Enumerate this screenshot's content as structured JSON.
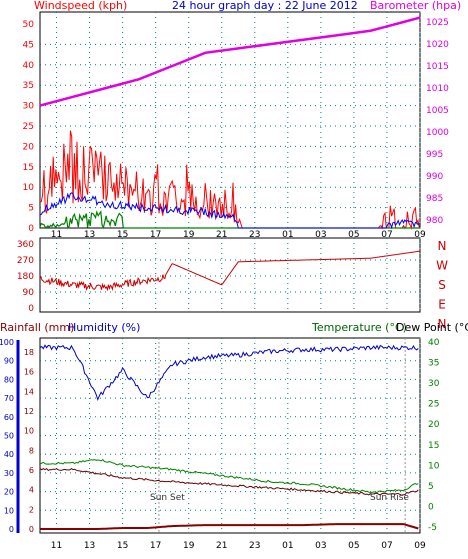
{
  "colors": {
    "windspeed": "#ff0000",
    "gust_avg": "#0000ff",
    "wind_green": "#008000",
    "barometer": "#e000e0",
    "direction": "#cc0000",
    "humidity": "#0000cc",
    "temperature": "#008000",
    "dewpoint": "#660000",
    "rainfall": "#880000",
    "title": "#0000cc",
    "grid": "#008080"
  },
  "top_panel": {
    "left_label": "Windspeed (kph)",
    "title": "24 hour graph day : 22 June 2012",
    "right_label": "Barometer (hpa)",
    "left_ticks": [
      "50",
      "45",
      "40",
      "35",
      "30",
      "25",
      "20",
      "15",
      "10",
      "5",
      "0"
    ],
    "right_ticks": [
      "1025",
      "1020",
      "1015",
      "1010",
      "1005",
      "1000",
      "995",
      "990",
      "985",
      "980"
    ]
  },
  "dir_panel": {
    "left_ticks": [
      "360",
      "270",
      "180",
      "90",
      "0"
    ],
    "compass": [
      "N",
      "W",
      "S",
      "E",
      "N"
    ]
  },
  "bottom_panel": {
    "left_label_1": "Rainfall (mm)",
    "left_label_2": "Humidity (%)",
    "right_label_1": "Temperature (°C)",
    "right_label_2": "Dew Point (°C)",
    "humidity_ticks": [
      "100",
      "90",
      "80",
      "70",
      "60",
      "50",
      "40",
      "30",
      "20",
      "10",
      "0"
    ],
    "rain_ticks": [
      "18",
      "16",
      "14",
      "12",
      "10",
      "8",
      "6",
      "4",
      "2",
      "0"
    ],
    "temp_ticks": [
      "40",
      "35",
      "30",
      "25",
      "20",
      "15",
      "10",
      "5",
      "0",
      "-5"
    ],
    "sunset": "Sun Set",
    "sunrise": "Sun Rise"
  },
  "x_ticks": [
    "11",
    "13",
    "15",
    "17",
    "19",
    "21",
    "23",
    "01",
    "03",
    "05",
    "07",
    "09"
  ],
  "chart_data": [
    {
      "type": "line",
      "title": "24 hour graph day : 22 June 2012",
      "xlabel": "",
      "ylabel": "Windspeed (kph)",
      "y2label": "Barometer (hpa)",
      "ylim": [
        0,
        50
      ],
      "y2lim": [
        980,
        1028
      ],
      "x": [
        "10:00",
        "12:00",
        "14:00",
        "16:00",
        "18:00",
        "20:00",
        "22:00",
        "00:00",
        "02:00",
        "04:00",
        "06:00",
        "08:00",
        "09:00"
      ],
      "series": [
        {
          "name": "Windspeed (kph)",
          "values": [
            6,
            14,
            10,
            8,
            7,
            6,
            2,
            0,
            0,
            0,
            0,
            1,
            4
          ]
        },
        {
          "name": "Barometer (hpa)",
          "values": [
            1006,
            1008,
            1010,
            1012,
            1015,
            1018,
            1019,
            1020,
            1021,
            1022,
            1023,
            1025,
            1026
          ]
        }
      ]
    },
    {
      "type": "line",
      "title": "",
      "ylabel": "",
      "ylim": [
        0,
        360
      ],
      "x": [
        "10:00",
        "12:00",
        "14:00",
        "16:00",
        "17:30",
        "18:00",
        "19:30",
        "21:00",
        "22:00",
        "06:00",
        "09:00"
      ],
      "series": [
        {
          "name": "",
          "values": [
            165,
            130,
            115,
            150,
            170,
            250,
            190,
            130,
            260,
            280,
            320
          ]
        }
      ]
    },
    {
      "type": "line",
      "title": "",
      "ylabel": "Humidity (%)",
      "y2label": "Temperature (°C)",
      "ylim": [
        0,
        100
      ],
      "y2lim": [
        -5,
        40
      ],
      "x": [
        "10:00",
        "12:00",
        "13:30",
        "15:00",
        "16:30",
        "18:00",
        "20:00",
        "22:00",
        "00:00",
        "02:00",
        "04:00",
        "06:00",
        "08:00",
        "09:00"
      ],
      "series": [
        {
          "name": "Humidity (%)",
          "values": [
            97,
            97,
            70,
            85,
            70,
            88,
            92,
            93,
            95,
            96,
            96,
            97,
            97,
            97
          ]
        },
        {
          "name": "Temperature (°C)",
          "values": [
            10.5,
            10.5,
            11.5,
            10,
            9.5,
            9,
            8,
            7,
            6,
            5.5,
            4.5,
            3.5,
            4,
            6
          ]
        },
        {
          "name": "Dew Point (°C)",
          "values": [
            9,
            9,
            8,
            7,
            6.5,
            6,
            5.5,
            5,
            4.5,
            4,
            3.5,
            3,
            3,
            4
          ]
        },
        {
          "name": "Rainfall (mm)",
          "values": [
            0,
            0,
            0,
            0.1,
            0.1,
            0.3,
            0.4,
            0.4,
            0.4,
            0.4,
            0.5,
            0.5,
            0.5,
            0
          ]
        }
      ]
    }
  ]
}
